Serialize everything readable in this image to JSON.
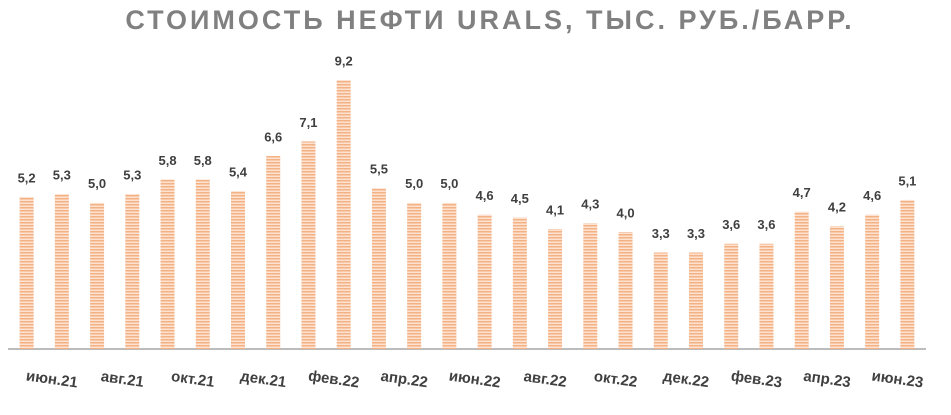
{
  "chart_data": {
    "type": "bar",
    "title": "СТОИМОСТЬ НЕФТИ URALS, ТЫС. РУБ./БАРР.",
    "categories": [
      null,
      "июн.21",
      null,
      "авг.21",
      null,
      "окт.21",
      null,
      "дек.21",
      null,
      "фев.22",
      null,
      "апр.22",
      null,
      "июн.22",
      null,
      "авг.22",
      null,
      "окт.22",
      null,
      "дек.22",
      null,
      "фев.23",
      null,
      "апр.23",
      null,
      "июн.23"
    ],
    "values": [
      5.2,
      5.3,
      5.0,
      5.3,
      5.8,
      5.8,
      5.4,
      6.6,
      7.1,
      9.2,
      5.5,
      5.0,
      5.0,
      4.6,
      4.5,
      4.1,
      4.3,
      4.0,
      3.3,
      3.3,
      3.6,
      3.6,
      4.7,
      4.2,
      4.6,
      5.1
    ],
    "value_labels": [
      "5,2",
      "5,3",
      "5,0",
      "5,3",
      "5,8",
      "5,8",
      "5,4",
      "6,6",
      "7,1",
      "9,2",
      "5,5",
      "5,0",
      "5,0",
      "4,6",
      "4,5",
      "4,1",
      "4,3",
      "4,0",
      "3,3",
      "3,3",
      "3,6",
      "3,6",
      "4,7",
      "4,2",
      "4,6",
      "5,1"
    ],
    "color": "#f4b183"
  }
}
